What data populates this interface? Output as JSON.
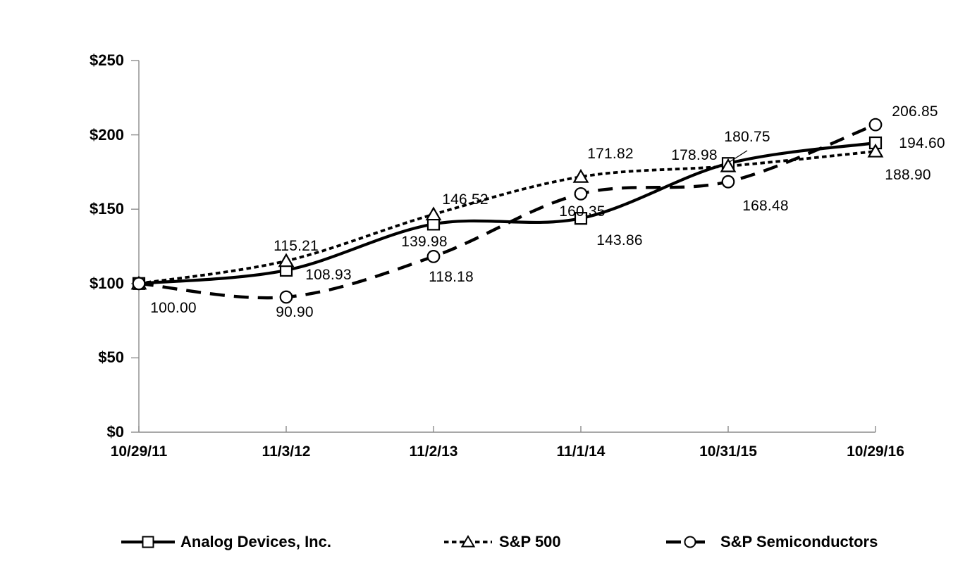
{
  "chart_data": {
    "type": "line",
    "title": "",
    "xlabel": "",
    "ylabel": "",
    "x_categories": [
      "10/29/11",
      "11/3/12",
      "11/2/13",
      "11/1/14",
      "10/31/15",
      "10/29/16"
    ],
    "y_axis": {
      "min": 0,
      "max": 250,
      "step": 50,
      "tick_labels": [
        "$0",
        "$50",
        "$100",
        "$150",
        "$200",
        "$250"
      ]
    },
    "grid": "off",
    "legend_position": "bottom",
    "series": [
      {
        "name": "Analog Devices, Inc.",
        "marker": "square",
        "line_style": "solid",
        "values": [
          100.0,
          108.93,
          139.98,
          143.86,
          180.75,
          194.6
        ]
      },
      {
        "name": "S&P 500",
        "marker": "triangle",
        "line_style": "dotted",
        "values": [
          100.0,
          115.21,
          146.52,
          171.82,
          178.98,
          188.9
        ]
      },
      {
        "name": "S&P Semiconductors",
        "marker": "circle",
        "line_style": "dashed",
        "values": [
          100.0,
          90.9,
          118.18,
          160.35,
          168.48,
          206.85
        ]
      }
    ],
    "point_labels": [
      {
        "series": "shared-start",
        "text": "100.00",
        "x": 246,
        "y": 438
      },
      {
        "series": "analog-devices",
        "text": "108.93",
        "x": 466,
        "y": 391
      },
      {
        "series": "analog-devices",
        "text": "139.98",
        "x": 602,
        "y": 344
      },
      {
        "series": "analog-devices",
        "text": "143.86",
        "x": 879,
        "y": 342
      },
      {
        "series": "analog-devices",
        "text": "180.75",
        "x": 1060,
        "y": 195
      },
      {
        "series": "analog-devices",
        "text": "194.60",
        "x": 1308,
        "y": 204
      },
      {
        "series": "sp-500",
        "text": "115.21",
        "x": 420,
        "y": 350
      },
      {
        "series": "sp-500",
        "text": "146.52",
        "x": 660,
        "y": 284
      },
      {
        "series": "sp-500",
        "text": "171.82",
        "x": 866,
        "y": 219
      },
      {
        "series": "sp-500",
        "text": "178.98",
        "x": 985,
        "y": 221
      },
      {
        "series": "sp-500",
        "text": "188.90",
        "x": 1288,
        "y": 249
      },
      {
        "series": "sp-semiconductors",
        "text": "90.90",
        "x": 418,
        "y": 444
      },
      {
        "series": "sp-semiconductors",
        "text": "118.18",
        "x": 640,
        "y": 394
      },
      {
        "series": "sp-semiconductors",
        "text": "160.35",
        "x": 826,
        "y": 301
      },
      {
        "series": "sp-semiconductors",
        "text": "168.48",
        "x": 1086,
        "y": 293
      },
      {
        "series": "sp-semiconductors",
        "text": "206.85",
        "x": 1298,
        "y": 159
      }
    ],
    "leader_line": {
      "x1": 1060,
      "y1": 214,
      "x2": 1035,
      "y2": 230
    },
    "legend": [
      {
        "label": "Analog Devices, Inc.",
        "marker": "square",
        "line_style": "solid"
      },
      {
        "label": "S&P 500",
        "marker": "triangle",
        "line_style": "dotted"
      },
      {
        "label": "S&P Semiconductors",
        "marker": "circle",
        "line_style": "dashed"
      }
    ],
    "colors": {
      "series_line": "#000000",
      "marker_fill": "#ffffff",
      "axis_line": "#8c8c8c",
      "text": "#000000",
      "background": "#ffffff"
    }
  }
}
